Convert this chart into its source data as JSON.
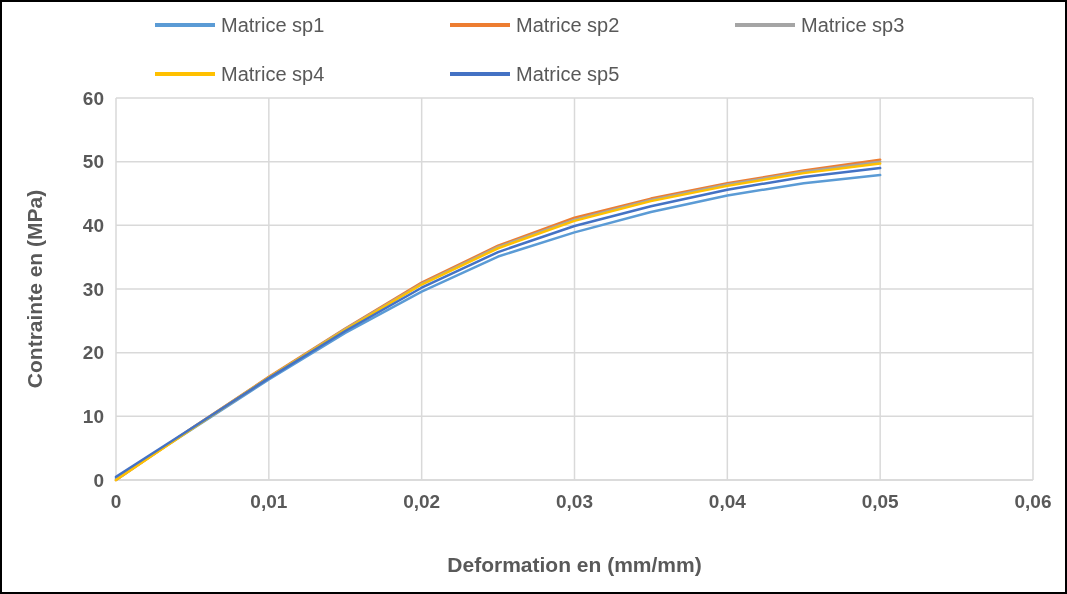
{
  "chart_data": {
    "type": "line",
    "xlabel": "Deformation en (mm/mm)",
    "ylabel": "Contrainte en (MPa)",
    "x": [
      0,
      0.005,
      0.01,
      0.015,
      0.02,
      0.025,
      0.03,
      0.035,
      0.04,
      0.045,
      0.05
    ],
    "series": [
      {
        "name": "Matrice sp1",
        "color": "#5b9bd5",
        "values": [
          0.3,
          8,
          15.8,
          23.1,
          29.6,
          35.1,
          38.9,
          42.1,
          44.7,
          46.6,
          47.9
        ]
      },
      {
        "name": "Matrice sp2",
        "color": "#ed7d31",
        "values": [
          0,
          8.2,
          16.2,
          23.8,
          31,
          36.8,
          41.2,
          44.2,
          46.6,
          48.6,
          50.3
        ]
      },
      {
        "name": "Matrice sp3",
        "color": "#a5a5a5",
        "values": [
          0,
          8.2,
          16.1,
          23.7,
          30.8,
          36.6,
          40.9,
          44,
          46.4,
          48.4,
          50
        ]
      },
      {
        "name": "Matrice sp4",
        "color": "#ffc000",
        "values": [
          0,
          8.1,
          16.1,
          23.6,
          30.7,
          36.4,
          40.7,
          43.8,
          46.2,
          48.2,
          49.7
        ]
      },
      {
        "name": "Matrice sp5",
        "color": "#4472c4",
        "values": [
          0.5,
          8.2,
          16,
          23.4,
          30.2,
          35.8,
          39.9,
          43,
          45.6,
          47.6,
          49
        ]
      }
    ],
    "xlim": [
      0,
      0.06
    ],
    "xticks": [
      0,
      {
        "value": 0.01,
        "label": "0,01"
      },
      {
        "value": 0.02,
        "label": "0,02"
      },
      {
        "value": 0.03,
        "label": "0,03"
      },
      {
        "value": 0.04,
        "label": "0,04"
      },
      {
        "value": 0.05,
        "label": "0,05"
      },
      {
        "value": 0.06,
        "label": "0,06"
      }
    ],
    "ylim": [
      0,
      60
    ],
    "yticks": [
      0,
      10,
      20,
      30,
      40,
      50,
      60
    ],
    "grid": true,
    "legend": "top",
    "marker": "none",
    "line_style": "solid"
  }
}
